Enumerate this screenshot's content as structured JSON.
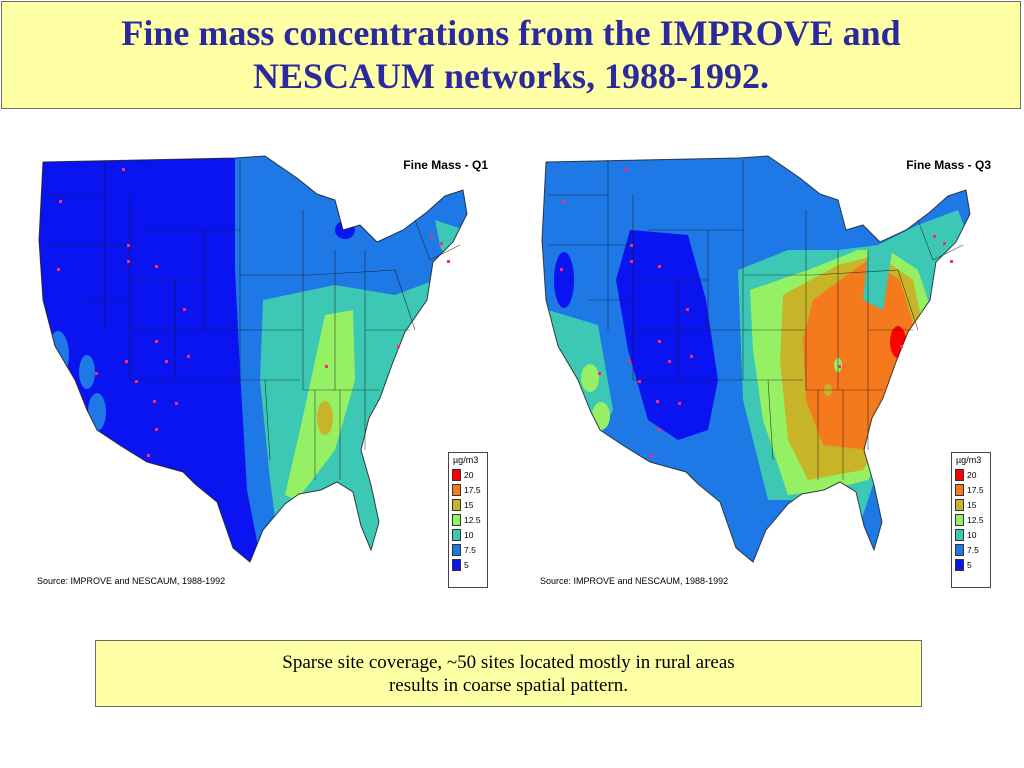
{
  "title": {
    "line1": "Fine mass concentrations from the IMPROVE and",
    "line2": "NESCAUM networks, 1988-1992."
  },
  "maps": [
    {
      "title": "Fine Mass - Q1",
      "source": "Source: IMPROVE and NESCAUM, 1988-1992"
    },
    {
      "title": "Fine Mass - Q3",
      "source": "Source: IMPROVE and NESCAUM, 1988-1992"
    }
  ],
  "legend": {
    "unit": "µg/m3",
    "bins": [
      {
        "label": "20",
        "color": "#ff0000"
      },
      {
        "label": "17.5",
        "color": "#f57a1e"
      },
      {
        "label": "15",
        "color": "#c8b428"
      },
      {
        "label": "12.5",
        "color": "#96f064"
      },
      {
        "label": "10",
        "color": "#3cc8b4"
      },
      {
        "label": "7.5",
        "color": "#1e78e6"
      },
      {
        "label": "5",
        "color": "#0a14f0"
      }
    ]
  },
  "caption": {
    "line1": "Sparse site coverage, ~50 sites located mostly in rural areas",
    "line2": "results in coarse spatial pattern."
  },
  "colors": {
    "title_bg": "#ffffa6",
    "title_text": "#2a2a9e",
    "site_marker": "#ff2a6a"
  }
}
